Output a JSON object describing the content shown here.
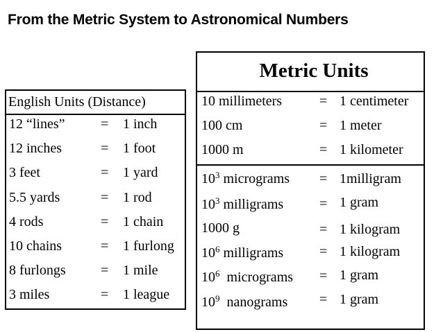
{
  "title": "From the Metric System to Astronomical Numbers",
  "english": {
    "header": "English Units (Distance)",
    "rows": [
      {
        "lhs": "12 “lines”",
        "eq": "=",
        "rhs": "1 inch"
      },
      {
        "lhs": "12 inches",
        "eq": "=",
        "rhs": "1 foot"
      },
      {
        "lhs": "3 feet",
        "eq": "=",
        "rhs": "1 yard"
      },
      {
        "lhs": "5.5 yards",
        "eq": "=",
        "rhs": "1 rod"
      },
      {
        "lhs": "4 rods",
        "eq": "=",
        "rhs": "1 chain"
      },
      {
        "lhs": "10 chains",
        "eq": "=",
        "rhs": "1 furlong"
      },
      {
        "lhs": "8 furlongs",
        "eq": "=",
        "rhs": "1 mile"
      },
      {
        "lhs": "3 miles",
        "eq": "=",
        "rhs": "1 league"
      }
    ]
  },
  "metric": {
    "header": "Metric Units",
    "length_rows": [
      {
        "lhs": "10 millimeters",
        "eq": "=",
        "rhs": "1 centimeter"
      },
      {
        "lhs": "100 cm",
        "eq": "=",
        "rhs": "1 meter"
      },
      {
        "lhs": "1000 m",
        "eq": "=",
        "rhs": "1 kilometer"
      }
    ],
    "mass_rows": [
      {
        "base": "10",
        "exp": "3",
        "unit": " micrograms",
        "eq": "=",
        "rhs": "1milligram"
      },
      {
        "base": "10",
        "exp": "3",
        "unit": " milligrams",
        "eq": "=",
        "rhs": "1 gram"
      },
      {
        "base": "1000 g",
        "exp": "",
        "unit": "",
        "eq": "=",
        "rhs": "1 kilogram"
      },
      {
        "base": "10",
        "exp": "6",
        "unit": " milligrams",
        "eq": "=",
        "rhs": "1 kilogram"
      },
      {
        "base": "10",
        "exp": "6",
        "unit": "  micrograms",
        "eq": "=",
        "rhs": "1 gram"
      },
      {
        "base": "10",
        "exp": "9",
        "unit": "  nanograms",
        "eq": "=",
        "rhs": "1 gram"
      }
    ]
  }
}
